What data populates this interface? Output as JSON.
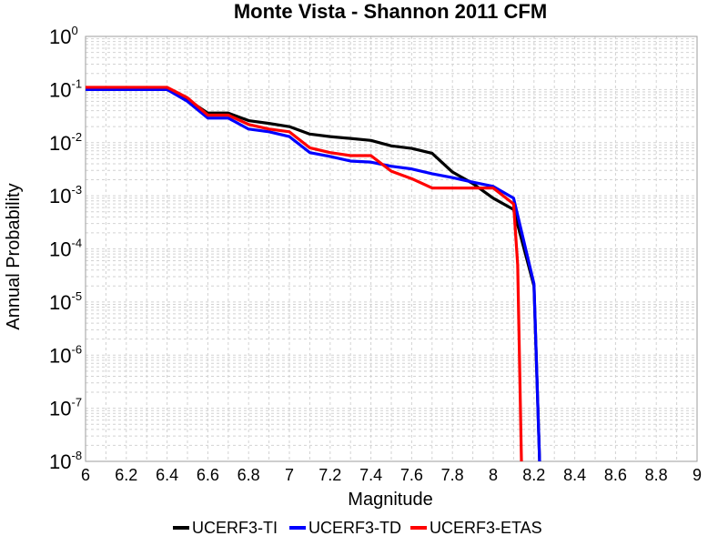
{
  "chart_data": {
    "type": "line",
    "title": "Monte Vista - Shannon 2011 CFM",
    "xlabel": "Magnitude",
    "ylabel": "Annual Probability",
    "xlim": [
      6,
      9
    ],
    "ylim": [
      1e-08,
      1
    ],
    "y_scale": "log",
    "grid": true,
    "legend_position": "bottom",
    "x_ticks": [
      "6",
      "6.2",
      "6.4",
      "6.6",
      "6.8",
      "7",
      "7.2",
      "7.4",
      "7.6",
      "7.8",
      "8",
      "8.2",
      "8.4",
      "8.6",
      "8.8",
      "9"
    ],
    "y_ticks": [
      {
        "base": "10",
        "exp": "-8"
      },
      {
        "base": "10",
        "exp": "-7"
      },
      {
        "base": "10",
        "exp": "-6"
      },
      {
        "base": "10",
        "exp": "-5"
      },
      {
        "base": "10",
        "exp": "-4"
      },
      {
        "base": "10",
        "exp": "-3"
      },
      {
        "base": "10",
        "exp": "-2"
      },
      {
        "base": "10",
        "exp": "-1"
      },
      {
        "base": "10",
        "exp": "0"
      }
    ],
    "series": [
      {
        "name": "UCERF3-TI",
        "color": "#000000",
        "x": [
          6.0,
          6.4,
          6.5,
          6.6,
          6.7,
          6.8,
          6.9,
          7.0,
          7.1,
          7.2,
          7.3,
          7.4,
          7.5,
          7.6,
          7.7,
          7.8,
          7.9,
          8.0,
          8.1,
          8.2,
          8.23
        ],
        "y": [
          0.1,
          0.1,
          0.065,
          0.036,
          0.036,
          0.026,
          0.023,
          0.02,
          0.0145,
          0.013,
          0.012,
          0.011,
          0.0087,
          0.0078,
          0.0063,
          0.0028,
          0.0017,
          0.0009,
          0.00055,
          2e-05,
          5e-09
        ]
      },
      {
        "name": "UCERF3-TD",
        "color": "#0000ff",
        "x": [
          6.0,
          6.4,
          6.5,
          6.6,
          6.7,
          6.8,
          6.9,
          7.0,
          7.1,
          7.2,
          7.3,
          7.4,
          7.5,
          7.6,
          7.7,
          7.8,
          7.9,
          8.0,
          8.1,
          8.2,
          8.23
        ],
        "y": [
          0.1,
          0.1,
          0.06,
          0.029,
          0.029,
          0.018,
          0.016,
          0.013,
          0.0065,
          0.0055,
          0.0045,
          0.0043,
          0.0036,
          0.0032,
          0.0026,
          0.0022,
          0.0018,
          0.0015,
          0.0009,
          2.2e-05,
          5e-09
        ]
      },
      {
        "name": "UCERF3-ETAS",
        "color": "#ff0000",
        "x": [
          6.0,
          6.4,
          6.5,
          6.6,
          6.7,
          6.8,
          6.9,
          7.0,
          7.1,
          7.2,
          7.3,
          7.4,
          7.5,
          7.6,
          7.7,
          7.8,
          7.9,
          8.0,
          8.1,
          8.12,
          8.14
        ],
        "y": [
          0.11,
          0.11,
          0.07,
          0.033,
          0.033,
          0.022,
          0.018,
          0.016,
          0.008,
          0.0065,
          0.0057,
          0.0057,
          0.0029,
          0.0021,
          0.0014,
          0.0014,
          0.0014,
          0.0014,
          0.0007,
          5e-05,
          5e-09
        ]
      }
    ]
  }
}
